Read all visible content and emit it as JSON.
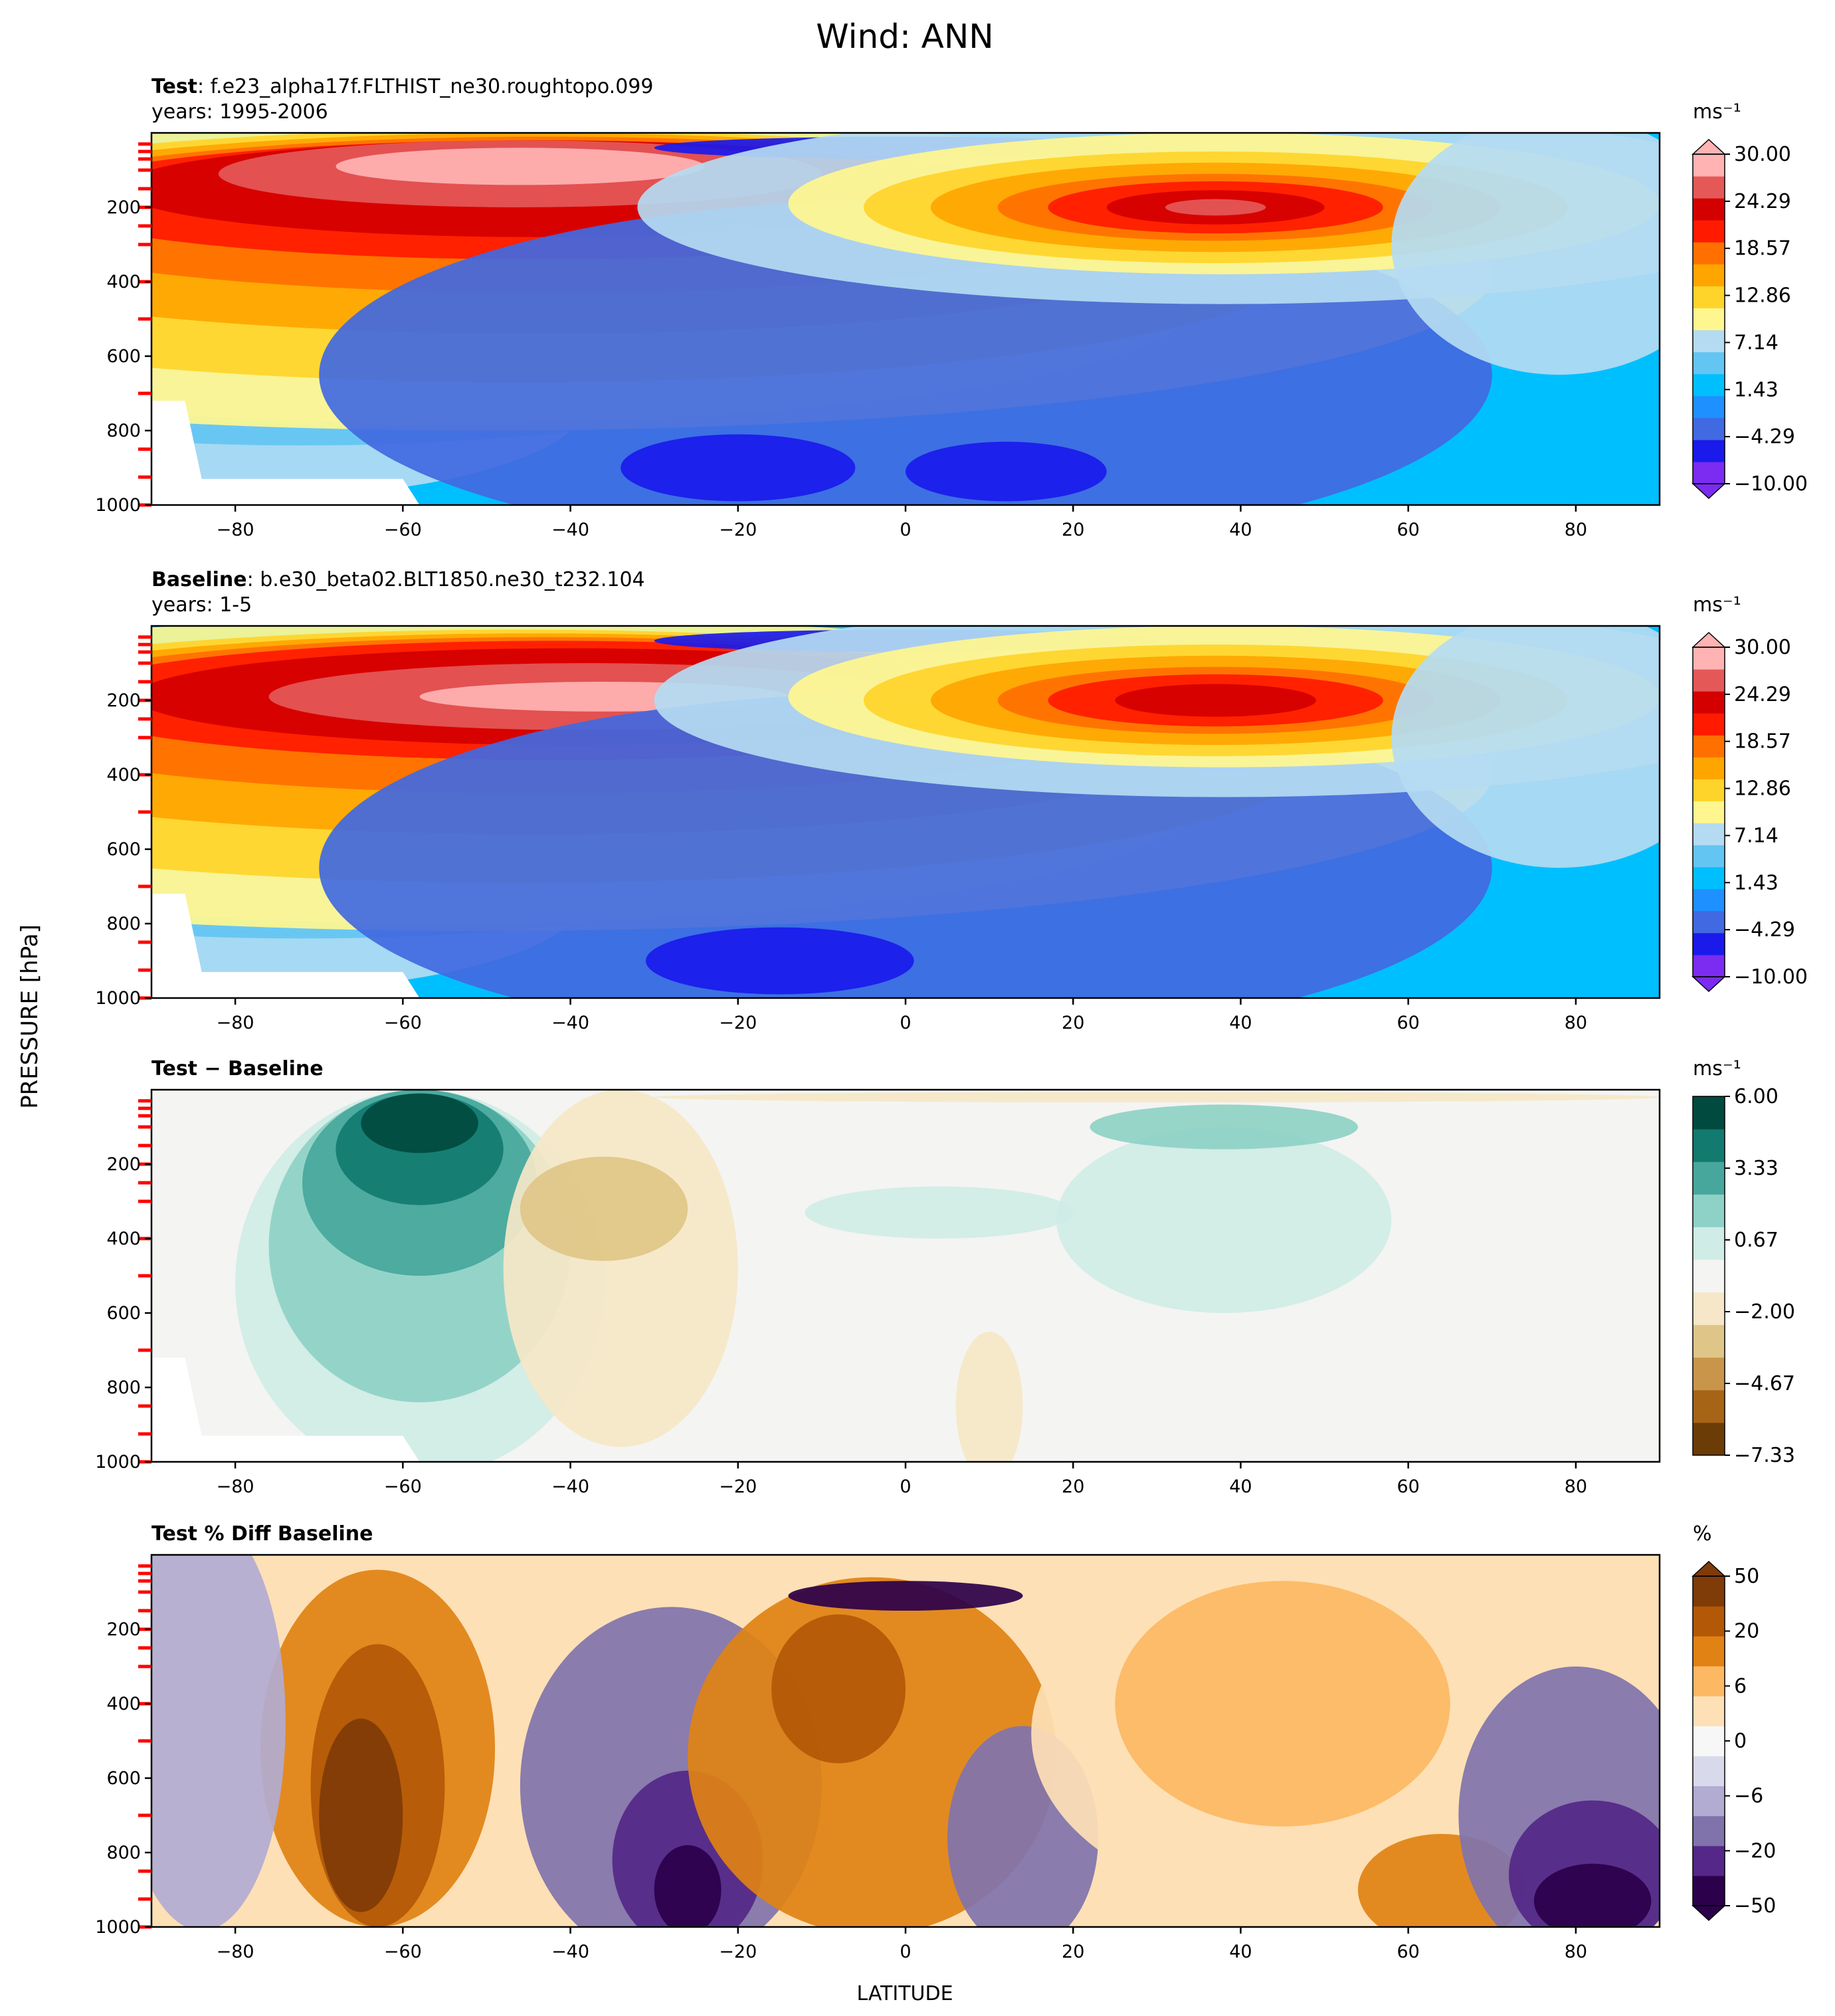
{
  "figure": {
    "title": "Wind: ANN",
    "ylabel": "PRESSURE [hPa]",
    "xlabel": "LATITUDE"
  },
  "chart_data": [
    {
      "type": "heatmap",
      "title_bold": "Test",
      "title_rest": ": f.e23_alpha17f.FLTHIST_ne30.roughtopo.099",
      "subtitle": "years: 1995-2006",
      "xlim": [
        -90,
        90
      ],
      "ylim": [
        1000,
        0
      ],
      "x_ticks": [
        "−80",
        "−60",
        "−40",
        "−20",
        "0",
        "20",
        "40",
        "60",
        "80"
      ],
      "y_ticks": [
        "200",
        "400",
        "600",
        "800",
        "1000"
      ],
      "colorbar": {
        "unit": "ms⁻¹",
        "extend": "both",
        "ticks": [
          "30.00",
          "24.29",
          "18.57",
          "12.86",
          "7.14",
          "1.43",
          "−4.29",
          "−10.00"
        ],
        "colors": [
          "#7b2cf0",
          "#1a1aeb",
          "#4169e1",
          "#1e90ff",
          "#00bfff",
          "#63c5f2",
          "#b4dbf2",
          "#fff68f",
          "#ffd42a",
          "#ffa500",
          "#ff7000",
          "#ff1a00",
          "#d40000",
          "#e45858",
          "#ffb3b3"
        ]
      },
      "features": [
        {
          "name": "southern-jet",
          "lat": -45,
          "p": 180,
          "value": 30
        },
        {
          "name": "northern-jet",
          "lat": 37,
          "p": 200,
          "value": 27
        },
        {
          "name": "tropical-easterlies",
          "lat": 0,
          "p": 900,
          "value": -7
        }
      ]
    },
    {
      "type": "heatmap",
      "title_bold": "Baseline",
      "title_rest": ": b.e30_beta02.BLT1850.ne30_t232.104",
      "subtitle": "years: 1-5",
      "xlim": [
        -90,
        90
      ],
      "ylim": [
        1000,
        0
      ],
      "x_ticks": [
        "−80",
        "−60",
        "−40",
        "−20",
        "0",
        "20",
        "40",
        "60",
        "80"
      ],
      "y_ticks": [
        "200",
        "400",
        "600",
        "800",
        "1000"
      ],
      "colorbar": {
        "unit": "ms⁻¹",
        "extend": "both",
        "ticks": [
          "30.00",
          "24.29",
          "18.57",
          "12.86",
          "7.14",
          "1.43",
          "−4.29",
          "−10.00"
        ],
        "colors": [
          "#7b2cf0",
          "#1a1aeb",
          "#4169e1",
          "#1e90ff",
          "#00bfff",
          "#63c5f2",
          "#b4dbf2",
          "#fff68f",
          "#ffd42a",
          "#ffa500",
          "#ff7000",
          "#ff1a00",
          "#d40000",
          "#e45858",
          "#ffb3b3"
        ]
      },
      "features": [
        {
          "name": "southern-jet",
          "lat": -38,
          "p": 200,
          "value": 30
        },
        {
          "name": "northern-jet",
          "lat": 37,
          "p": 200,
          "value": 25
        },
        {
          "name": "tropical-easterlies",
          "lat": -15,
          "p": 900,
          "value": -7
        }
      ]
    },
    {
      "type": "heatmap",
      "title_bold": "Test − Baseline",
      "title_rest": "",
      "subtitle": "",
      "xlim": [
        -90,
        90
      ],
      "ylim": [
        1000,
        0
      ],
      "x_ticks": [
        "−80",
        "−60",
        "−40",
        "−20",
        "0",
        "20",
        "40",
        "60",
        "80"
      ],
      "y_ticks": [
        "200",
        "400",
        "600",
        "800",
        "1000"
      ],
      "colorbar": {
        "unit": "ms⁻¹",
        "extend": "neither",
        "ticks": [
          "6.00",
          "3.33",
          "0.67",
          "−2.00",
          "−4.67",
          "−7.33"
        ],
        "colors": [
          "#6b3c05",
          "#a66417",
          "#c8954a",
          "#dfc587",
          "#f5e7c7",
          "#f4f4f2",
          "#cfece6",
          "#8ed1c6",
          "#47a79c",
          "#127a6f",
          "#014a3f"
        ]
      },
      "features": [
        {
          "name": "positive-diff-sh",
          "lat": -58,
          "p": 150,
          "value": 6.5
        },
        {
          "name": "negative-diff-sh",
          "lat": -35,
          "p": 350,
          "value": -3
        },
        {
          "name": "positive-diff-nh",
          "lat": 38,
          "p": 100,
          "value": 2.5
        }
      ]
    },
    {
      "type": "heatmap",
      "title_bold": "Test % Diff Baseline",
      "title_rest": "",
      "subtitle": "",
      "xlim": [
        -90,
        90
      ],
      "ylim": [
        1000,
        0
      ],
      "x_ticks": [
        "−80",
        "−60",
        "−40",
        "−20",
        "0",
        "20",
        "40",
        "60",
        "80"
      ],
      "y_ticks": [
        "200",
        "400",
        "600",
        "800",
        "1000"
      ],
      "colorbar": {
        "unit": "%",
        "extend": "both",
        "ticks": [
          "50",
          "20",
          "6",
          "0",
          "−6",
          "−20",
          "−50"
        ],
        "colors": [
          "#2d004b",
          "#542788",
          "#8073ac",
          "#b2abd2",
          "#d8daeb",
          "#f7f7f7",
          "#fee0b6",
          "#fdb863",
          "#e08214",
          "#b35806",
          "#7f3b08"
        ]
      },
      "features": [
        {
          "name": "positive-pct-sh",
          "lat": -65,
          "p": 600,
          "value": 50
        },
        {
          "name": "negative-pct-subtropics",
          "lat": -28,
          "p": 700,
          "value": -40
        },
        {
          "name": "negative-pct-arctic",
          "lat": 80,
          "p": 850,
          "value": -70
        }
      ]
    }
  ]
}
